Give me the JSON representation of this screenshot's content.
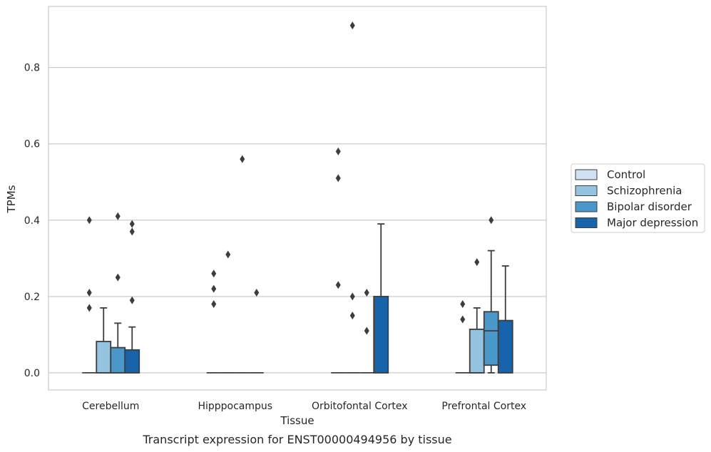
{
  "caption": "Transcript expression for ENST00000494956 by tissue",
  "chart_data": {
    "type": "boxplot",
    "xlabel": "Tissue",
    "ylabel": "TPMs",
    "ylim": [
      -0.045,
      0.96
    ],
    "yticks": [
      0.0,
      0.2,
      0.4,
      0.6,
      0.8
    ],
    "ytick_labels": [
      "0.0",
      "0.2",
      "0.4",
      "0.6",
      "0.8"
    ],
    "grid": true,
    "legend_placement": "right",
    "categories": [
      "Cerebellum",
      "Hipppocampus",
      "Orbitofontal Cortex",
      "Prefrontal Cortex"
    ],
    "series": [
      {
        "name": "Control",
        "color": "#d0e1f2",
        "boxes": [
          {
            "q1": 0,
            "median": 0,
            "q3": 0,
            "whisker_low": 0,
            "whisker_high": 0,
            "outliers": [
              0.17,
              0.21,
              0.4
            ]
          },
          {
            "q1": 0,
            "median": 0,
            "q3": 0,
            "whisker_low": 0,
            "whisker_high": 0,
            "outliers": [
              0.18,
              0.22,
              0.26
            ]
          },
          {
            "q1": 0,
            "median": 0,
            "q3": 0,
            "whisker_low": 0,
            "whisker_high": 0,
            "outliers": [
              0.23,
              0.51,
              0.58
            ]
          },
          {
            "q1": 0,
            "median": 0,
            "q3": 0,
            "whisker_low": 0,
            "whisker_high": 0,
            "outliers": [
              0.14,
              0.18
            ]
          }
        ]
      },
      {
        "name": "Schizophrenia",
        "color": "#94c4df",
        "boxes": [
          {
            "q1": 0,
            "median": 0,
            "q3": 0.082,
            "whisker_low": 0,
            "whisker_high": 0.17,
            "outliers": []
          },
          {
            "q1": 0,
            "median": 0,
            "q3": 0,
            "whisker_low": 0,
            "whisker_high": 0,
            "outliers": [
              0.31
            ]
          },
          {
            "q1": 0,
            "median": 0,
            "q3": 0,
            "whisker_low": 0,
            "whisker_high": 0,
            "outliers": [
              0.15,
              0.2,
              0.91
            ]
          },
          {
            "q1": 0,
            "median": 0,
            "q3": 0.114,
            "whisker_low": 0,
            "whisker_high": 0.17,
            "outliers": [
              0.29
            ]
          }
        ]
      },
      {
        "name": "Bipolar disorder",
        "color": "#4a98c9",
        "boxes": [
          {
            "q1": 0,
            "median": 0,
            "q3": 0.066,
            "whisker_low": 0,
            "whisker_high": 0.13,
            "outliers": [
              0.25,
              0.41
            ]
          },
          {
            "q1": 0,
            "median": 0,
            "q3": 0,
            "whisker_low": 0,
            "whisker_high": 0,
            "outliers": [
              0.56
            ]
          },
          {
            "q1": 0,
            "median": 0,
            "q3": 0,
            "whisker_low": 0,
            "whisker_high": 0,
            "outliers": [
              0.11,
              0.21
            ]
          },
          {
            "q1": 0.02,
            "median": 0.11,
            "q3": 0.16,
            "whisker_low": 0,
            "whisker_high": 0.32,
            "outliers": [
              0.4
            ]
          }
        ]
      },
      {
        "name": "Major depression",
        "color": "#1764ab",
        "boxes": [
          {
            "q1": 0,
            "median": 0,
            "q3": 0.06,
            "whisker_low": 0,
            "whisker_high": 0.12,
            "outliers": [
              0.19,
              0.37,
              0.39
            ]
          },
          {
            "q1": 0,
            "median": 0,
            "q3": 0,
            "whisker_low": 0,
            "whisker_high": 0,
            "outliers": [
              0.21
            ]
          },
          {
            "q1": 0,
            "median": 0,
            "q3": 0.2,
            "whisker_low": 0,
            "whisker_high": 0.39,
            "outliers": []
          },
          {
            "q1": 0,
            "median": 0,
            "q3": 0.137,
            "whisker_low": 0,
            "whisker_high": 0.28,
            "outliers": []
          }
        ]
      }
    ]
  }
}
